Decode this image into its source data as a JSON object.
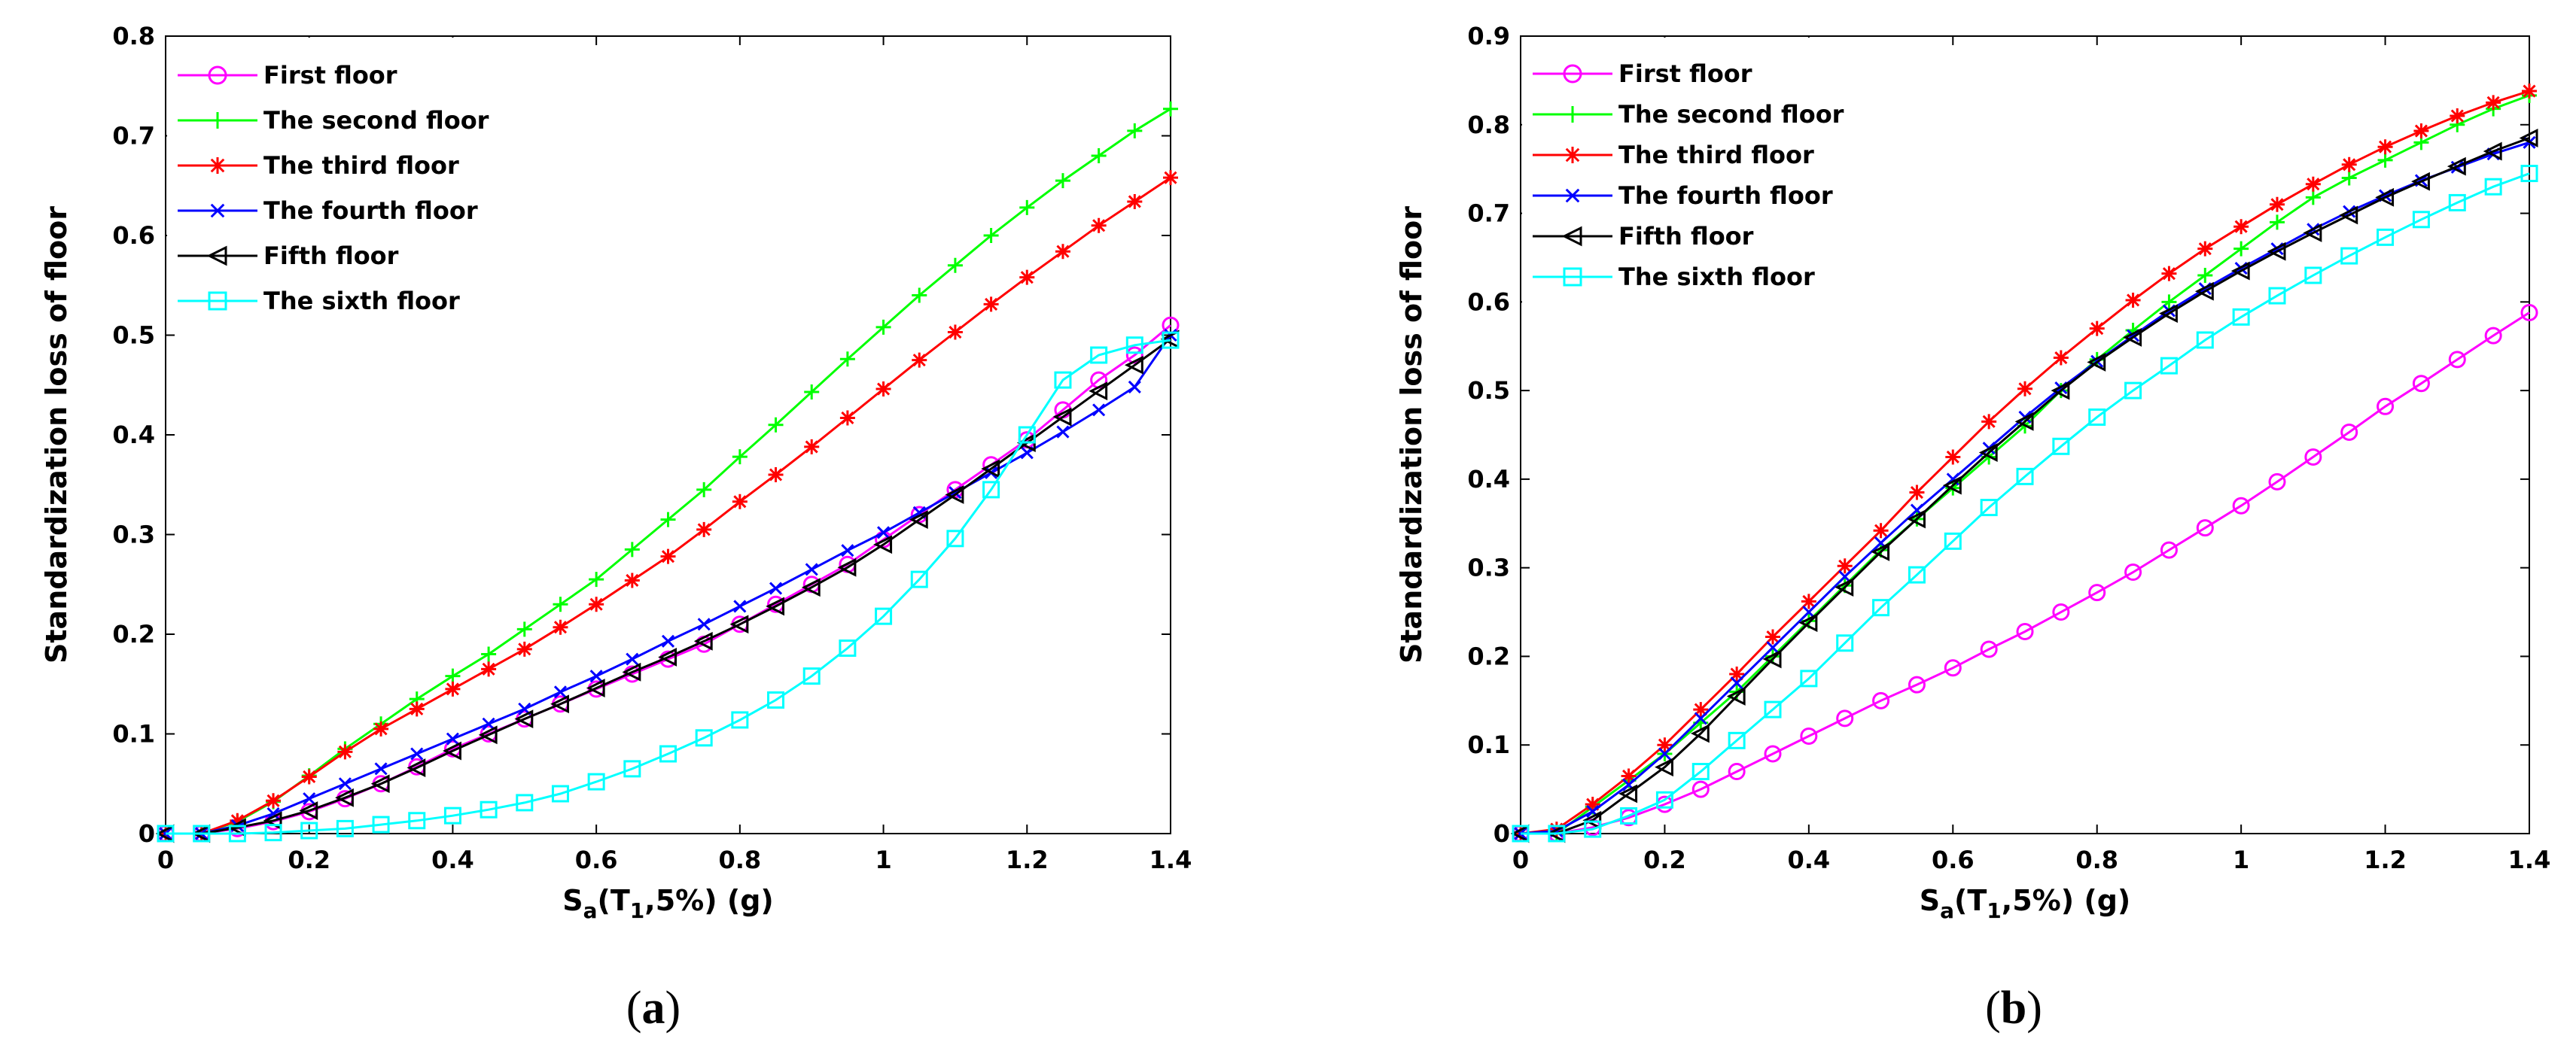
{
  "chart_data": [
    {
      "type": "line",
      "panel_label": "(a)",
      "panel_letter": "a",
      "xlabel": "Sa(T1,5%) (g)",
      "xlabel_parts": {
        "main": "S",
        "sub1": "a",
        "mid": "(T",
        "sub2": "1",
        "tail": ",5%) (g)"
      },
      "ylabel": "Standardization loss of floor",
      "xlim": [
        0,
        1.4
      ],
      "ylim": [
        0,
        0.8
      ],
      "xticks": [
        "0",
        "0.2",
        "0.4",
        "0.6",
        "0.8",
        "1",
        "1.2",
        "1.4"
      ],
      "xtick_values": [
        0,
        0.2,
        0.4,
        0.6,
        0.8,
        1,
        1.2,
        1.4
      ],
      "yticks": [
        "0",
        "0.1",
        "0.2",
        "0.3",
        "0.4",
        "0.5",
        "0.6",
        "0.7",
        "0.8"
      ],
      "ytick_values": [
        0,
        0.1,
        0.2,
        0.3,
        0.4,
        0.5,
        0.6,
        0.7,
        0.8
      ],
      "legend_position": "top-left",
      "x": [
        0,
        0.05,
        0.1,
        0.15,
        0.2,
        0.25,
        0.3,
        0.35,
        0.4,
        0.45,
        0.5,
        0.55,
        0.6,
        0.65,
        0.7,
        0.75,
        0.8,
        0.85,
        0.9,
        0.95,
        1.0,
        1.05,
        1.1,
        1.15,
        1.2,
        1.25,
        1.3,
        1.35,
        1.4
      ],
      "series": [
        {
          "name": "First floor",
          "color": "#ff00ff",
          "marker": "circle",
          "values": [
            0,
            0,
            0.005,
            0.012,
            0.022,
            0.035,
            0.05,
            0.067,
            0.085,
            0.1,
            0.115,
            0.13,
            0.145,
            0.16,
            0.175,
            0.19,
            0.21,
            0.23,
            0.25,
            0.27,
            0.295,
            0.32,
            0.345,
            0.37,
            0.395,
            0.425,
            0.455,
            0.48,
            0.51
          ]
        },
        {
          "name": "The second floor",
          "color": "#00ff00",
          "marker": "plus",
          "values": [
            0,
            0,
            0.012,
            0.032,
            0.058,
            0.085,
            0.11,
            0.135,
            0.158,
            0.18,
            0.205,
            0.23,
            0.255,
            0.285,
            0.315,
            0.345,
            0.378,
            0.41,
            0.443,
            0.476,
            0.508,
            0.54,
            0.57,
            0.6,
            0.628,
            0.655,
            0.68,
            0.705,
            0.727
          ]
        },
        {
          "name": "The third floor",
          "color": "#ff0000",
          "marker": "star",
          "values": [
            0,
            0,
            0.013,
            0.033,
            0.057,
            0.082,
            0.105,
            0.125,
            0.145,
            0.165,
            0.185,
            0.207,
            0.23,
            0.254,
            0.278,
            0.305,
            0.333,
            0.36,
            0.388,
            0.417,
            0.446,
            0.475,
            0.503,
            0.531,
            0.558,
            0.584,
            0.61,
            0.634,
            0.658
          ]
        },
        {
          "name": "The fourth floor",
          "color": "#0000ff",
          "marker": "x",
          "values": [
            0,
            0,
            0.008,
            0.02,
            0.035,
            0.05,
            0.065,
            0.08,
            0.095,
            0.11,
            0.125,
            0.142,
            0.158,
            0.175,
            0.193,
            0.21,
            0.228,
            0.246,
            0.265,
            0.284,
            0.302,
            0.322,
            0.342,
            0.362,
            0.382,
            0.403,
            0.425,
            0.448,
            0.5
          ]
        },
        {
          "name": "Fifth floor",
          "color": "#000000",
          "marker": "triangle-left",
          "values": [
            0,
            0,
            0.006,
            0.013,
            0.023,
            0.036,
            0.05,
            0.066,
            0.083,
            0.099,
            0.115,
            0.13,
            0.146,
            0.162,
            0.177,
            0.193,
            0.21,
            0.228,
            0.247,
            0.267,
            0.29,
            0.315,
            0.34,
            0.366,
            0.392,
            0.418,
            0.444,
            0.47,
            0.496
          ]
        },
        {
          "name": "The sixth floor",
          "color": "#00ffff",
          "marker": "square",
          "values": [
            0,
            0,
            0,
            0.001,
            0.003,
            0.005,
            0.009,
            0.013,
            0.018,
            0.024,
            0.031,
            0.04,
            0.052,
            0.065,
            0.08,
            0.096,
            0.114,
            0.134,
            0.158,
            0.186,
            0.218,
            0.255,
            0.296,
            0.345,
            0.4,
            0.455,
            0.48,
            0.49,
            0.495
          ]
        }
      ]
    },
    {
      "type": "line",
      "panel_label": "(b)",
      "panel_letter": "b",
      "xlabel": "Sa(T1,5%) (g)",
      "xlabel_parts": {
        "main": "S",
        "sub1": "a",
        "mid": "(T",
        "sub2": "1",
        "tail": ",5%) (g)"
      },
      "ylabel": "Standardization loss of floor",
      "xlim": [
        0,
        1.4
      ],
      "ylim": [
        0,
        0.9
      ],
      "xticks": [
        "0",
        "0.2",
        "0.4",
        "0.6",
        "0.8",
        "1",
        "1.2",
        "1.4"
      ],
      "xtick_values": [
        0,
        0.2,
        0.4,
        0.6,
        0.8,
        1,
        1.2,
        1.4
      ],
      "yticks": [
        "0",
        "0.1",
        "0.2",
        "0.3",
        "0.4",
        "0.5",
        "0.6",
        "0.7",
        "0.8",
        "0.9"
      ],
      "ytick_values": [
        0,
        0.1,
        0.2,
        0.3,
        0.4,
        0.5,
        0.6,
        0.7,
        0.8,
        0.9
      ],
      "legend_position": "top-left",
      "x": [
        0,
        0.05,
        0.1,
        0.15,
        0.2,
        0.25,
        0.3,
        0.35,
        0.4,
        0.45,
        0.5,
        0.55,
        0.6,
        0.65,
        0.7,
        0.75,
        0.8,
        0.85,
        0.9,
        0.95,
        1.0,
        1.05,
        1.1,
        1.15,
        1.2,
        1.25,
        1.3,
        1.35,
        1.4
      ],
      "series": [
        {
          "name": "First floor",
          "color": "#ff00ff",
          "marker": "circle",
          "values": [
            0,
            0,
            0.007,
            0.018,
            0.033,
            0.05,
            0.07,
            0.09,
            0.11,
            0.13,
            0.15,
            0.168,
            0.187,
            0.208,
            0.228,
            0.25,
            0.272,
            0.295,
            0.32,
            0.345,
            0.37,
            0.397,
            0.425,
            0.453,
            0.482,
            0.508,
            0.535,
            0.562,
            0.588
          ]
        },
        {
          "name": "The second floor",
          "color": "#00ff00",
          "marker": "plus",
          "values": [
            0,
            0,
            0.03,
            0.06,
            0.09,
            0.125,
            0.16,
            0.2,
            0.24,
            0.28,
            0.32,
            0.355,
            0.39,
            0.425,
            0.46,
            0.5,
            0.535,
            0.568,
            0.6,
            0.63,
            0.66,
            0.69,
            0.718,
            0.74,
            0.76,
            0.78,
            0.8,
            0.818,
            0.833
          ]
        },
        {
          "name": "The third floor",
          "color": "#ff0000",
          "marker": "star",
          "values": [
            0,
            0.005,
            0.033,
            0.065,
            0.1,
            0.14,
            0.18,
            0.222,
            0.262,
            0.302,
            0.342,
            0.385,
            0.425,
            0.465,
            0.502,
            0.537,
            0.57,
            0.602,
            0.632,
            0.66,
            0.685,
            0.71,
            0.733,
            0.755,
            0.775,
            0.793,
            0.81,
            0.825,
            0.838
          ]
        },
        {
          "name": "The fourth floor",
          "color": "#0000ff",
          "marker": "x",
          "values": [
            0,
            0.003,
            0.025,
            0.055,
            0.09,
            0.13,
            0.17,
            0.21,
            0.25,
            0.29,
            0.328,
            0.365,
            0.4,
            0.435,
            0.47,
            0.503,
            0.533,
            0.562,
            0.59,
            0.615,
            0.638,
            0.66,
            0.682,
            0.702,
            0.72,
            0.737,
            0.752,
            0.767,
            0.78
          ]
        },
        {
          "name": "Fifth floor",
          "color": "#000000",
          "marker": "triangle-left",
          "values": [
            0,
            0,
            0.015,
            0.045,
            0.075,
            0.113,
            0.155,
            0.197,
            0.238,
            0.278,
            0.318,
            0.355,
            0.393,
            0.43,
            0.465,
            0.5,
            0.532,
            0.56,
            0.587,
            0.612,
            0.635,
            0.657,
            0.678,
            0.698,
            0.718,
            0.736,
            0.753,
            0.77,
            0.785
          ]
        },
        {
          "name": "The sixth floor",
          "color": "#00ffff",
          "marker": "square",
          "values": [
            0,
            0,
            0.005,
            0.02,
            0.038,
            0.07,
            0.105,
            0.14,
            0.175,
            0.215,
            0.255,
            0.292,
            0.33,
            0.368,
            0.403,
            0.437,
            0.47,
            0.5,
            0.528,
            0.557,
            0.583,
            0.607,
            0.63,
            0.652,
            0.673,
            0.693,
            0.712,
            0.73,
            0.745
          ]
        }
      ]
    }
  ]
}
